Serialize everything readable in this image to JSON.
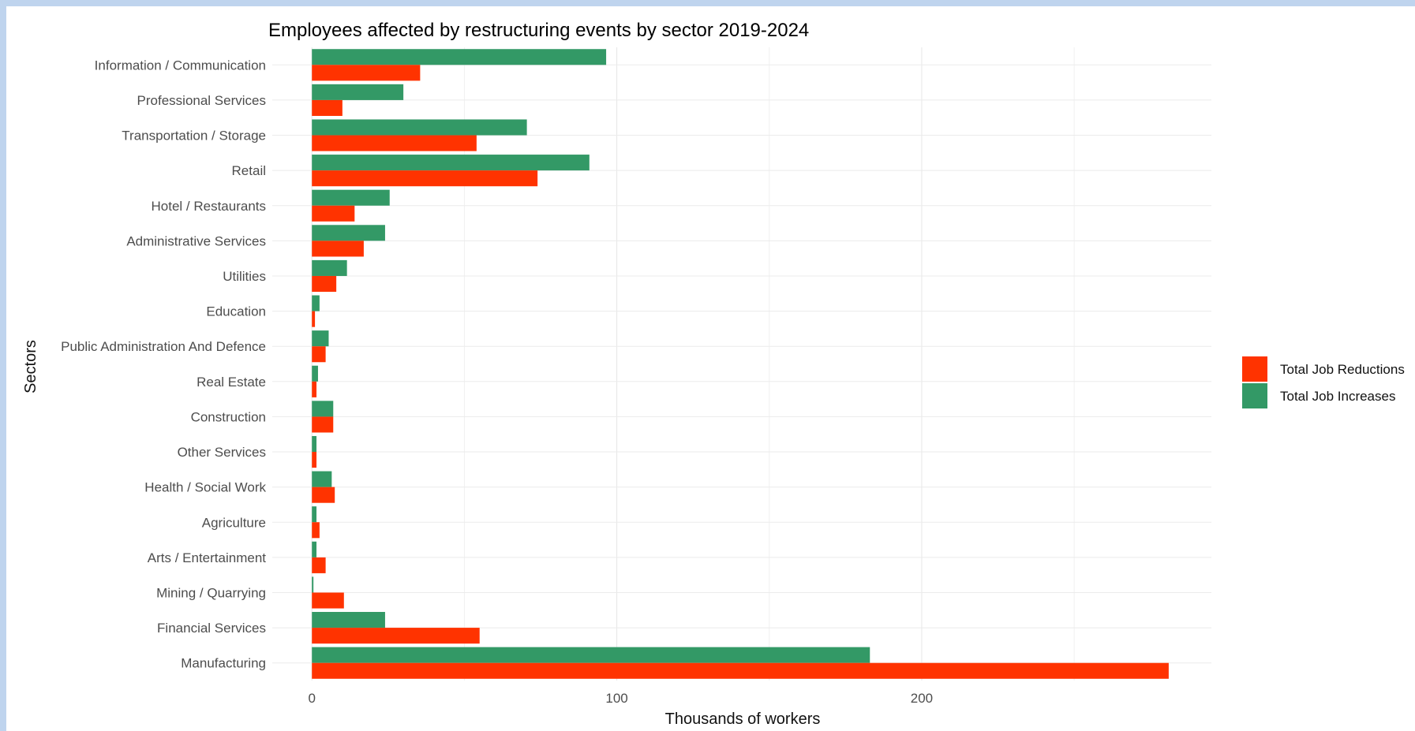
{
  "chart_data": {
    "type": "bar",
    "orientation": "horizontal",
    "title": "Employees affected by restructuring events by sector 2019-2024",
    "xlabel": "Thousands of workers",
    "ylabel": "Sectors",
    "xlim": [
      -13,
      295
    ],
    "xticks": [
      0,
      100,
      200
    ],
    "grid": true,
    "legend_position": "right",
    "categories": [
      "Information / Communication",
      "Professional Services",
      "Transportation / Storage",
      "Retail",
      "Hotel / Restaurants",
      "Administrative Services",
      "Utilities",
      "Education",
      "Public Administration And Defence",
      "Real Estate",
      "Construction",
      "Other Services",
      "Health / Social Work",
      "Agriculture",
      "Arts / Entertainment",
      "Mining / Quarrying",
      "Financial Services",
      "Manufacturing"
    ],
    "series": [
      {
        "name": "Total Job Reductions",
        "color": "#ff3300",
        "values": [
          35.5,
          10,
          54,
          74,
          14,
          17,
          8,
          1,
          4.5,
          1.5,
          7,
          1.5,
          7.5,
          2.5,
          4.5,
          10.5,
          55,
          281
        ]
      },
      {
        "name": "Total Job Increases",
        "color": "#339966",
        "values": [
          96.5,
          30,
          70.5,
          91,
          25.5,
          24,
          11.5,
          2.5,
          5.5,
          2,
          7,
          1.5,
          6.5,
          1.5,
          1.5,
          0.5,
          24,
          183
        ]
      }
    ]
  }
}
